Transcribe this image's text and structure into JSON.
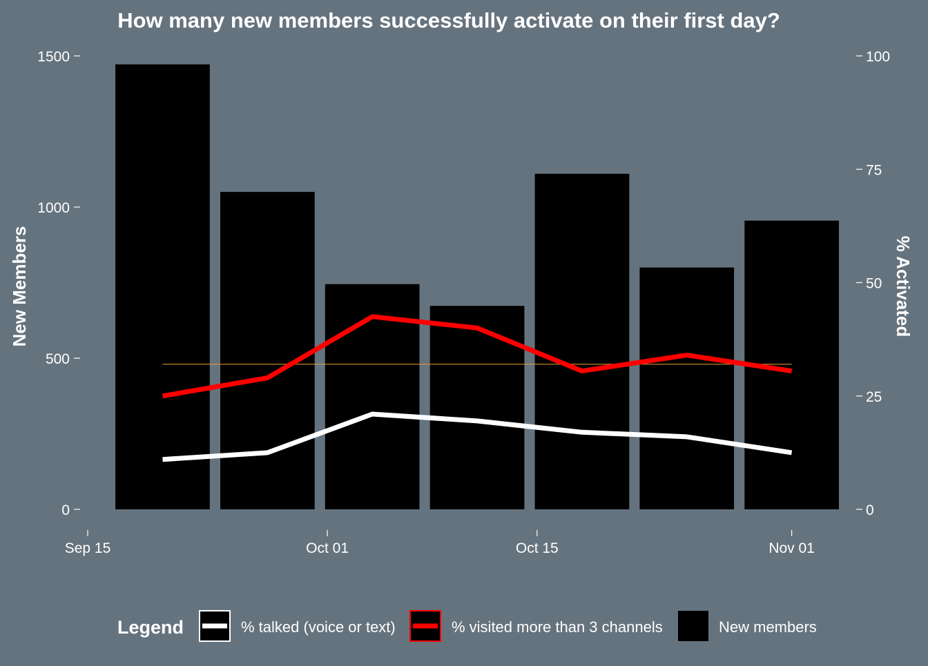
{
  "chart_data": {
    "type": "bar",
    "title": "How many new members successfully activate on their first day?",
    "y_left_label": "New Members",
    "y_right_label": "% Activated",
    "y_left_range": [
      0,
      1500
    ],
    "y_left_ticks": [
      0,
      500,
      1000,
      1500
    ],
    "y_right_range": [
      0,
      100
    ],
    "y_right_ticks": [
      0,
      25,
      50,
      75,
      100
    ],
    "x_range": [
      "2021-09-15",
      "2021-11-03"
    ],
    "x_ticks": [
      {
        "date": "2021-09-15",
        "label": "Sep 15"
      },
      {
        "date": "2021-10-01",
        "label": "Oct 01"
      },
      {
        "date": "2021-10-15",
        "label": "Oct 15"
      },
      {
        "date": "2021-11-01",
        "label": "Nov 01"
      }
    ],
    "categories": [
      "2021-09-20",
      "2021-09-27",
      "2021-10-04",
      "2021-10-11",
      "2021-10-18",
      "2021-10-25",
      "2021-11-01"
    ],
    "series": [
      {
        "name": "New members",
        "kind": "bar",
        "axis": "left",
        "color": "#000000",
        "values": [
          1472,
          1050,
          745,
          673,
          1110,
          800,
          955
        ]
      },
      {
        "name": "% visited more than 3 channels",
        "kind": "line",
        "axis": "right",
        "color": "#ff0000",
        "values": [
          25,
          29,
          42.5,
          40,
          30.5,
          34,
          30.5
        ]
      },
      {
        "name": "% talked (voice or text)",
        "kind": "line",
        "axis": "right",
        "color": "#ffffff",
        "values": [
          11,
          12.5,
          21,
          19.5,
          17,
          16,
          12.5
        ]
      }
    ],
    "reference_line": {
      "value": 32,
      "axis": "right",
      "color": "#f0a030"
    },
    "grid": false,
    "legend": {
      "title": "Legend",
      "position": "bottom",
      "entries": [
        "% talked (voice or text)",
        "% visited more than 3 channels",
        "New members"
      ]
    }
  },
  "colors": {
    "background": "#65737e",
    "text": "#ffffff"
  }
}
